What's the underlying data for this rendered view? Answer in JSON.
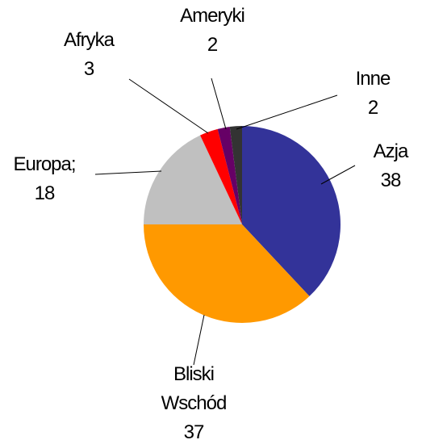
{
  "chart_data": {
    "type": "pie",
    "categories": [
      "Azja",
      "Bliski Wschód",
      "Europa;",
      "Afryka",
      "Ameryki",
      "Inne"
    ],
    "values": [
      38,
      37,
      18,
      3,
      2,
      2
    ],
    "colors": [
      "#333399",
      "#ff9900",
      "#c0c0c0",
      "#ff0000",
      "#660066",
      "#333333"
    ]
  }
}
